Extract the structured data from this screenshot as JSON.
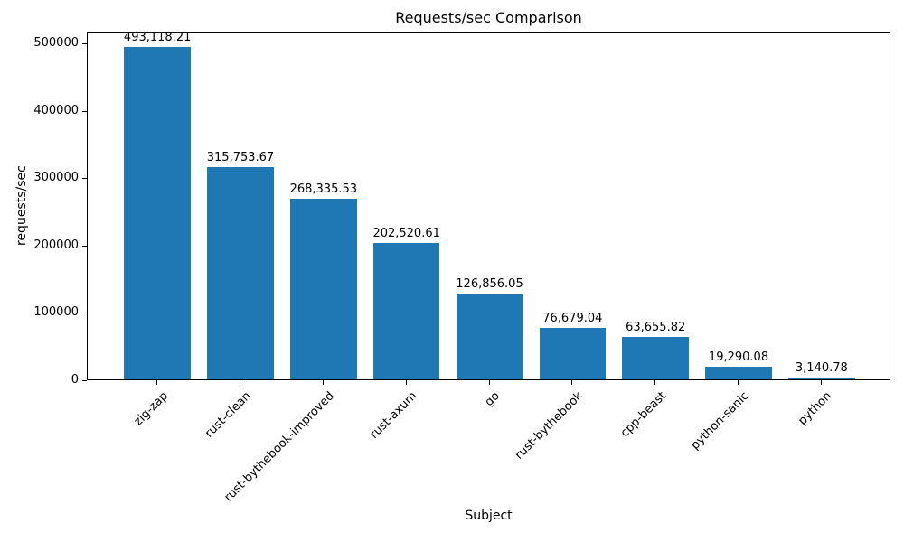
{
  "chart_data": {
    "type": "bar",
    "title": "Requests/sec Comparison",
    "xlabel": "Subject",
    "ylabel": "requests/sec",
    "categories": [
      "zig-zap",
      "rust-clean",
      "rust-bythebook-improved",
      "rust-axum",
      "go",
      "rust-bythebook",
      "cpp-beast",
      "python-sanic",
      "python"
    ],
    "values": [
      493118.21,
      315753.67,
      268335.53,
      202520.61,
      126856.05,
      76679.04,
      63655.82,
      19290.08,
      3140.78
    ],
    "value_labels": [
      "493,118.21",
      "315,753.67",
      "268,335.53",
      "202,520.61",
      "126,856.05",
      "76,679.04",
      "63,655.82",
      "19,290.08",
      "3,140.78"
    ],
    "yticks": [
      0,
      100000,
      200000,
      300000,
      400000,
      500000
    ],
    "ytick_labels": [
      "0",
      "100000",
      "200000",
      "300000",
      "400000",
      "500000"
    ],
    "ylim": [
      0,
      517774
    ],
    "x_tick_rotation": 45,
    "bar_color": "#1f77b4",
    "spine_color": "#000000",
    "grid": false,
    "legend_position": "none"
  }
}
